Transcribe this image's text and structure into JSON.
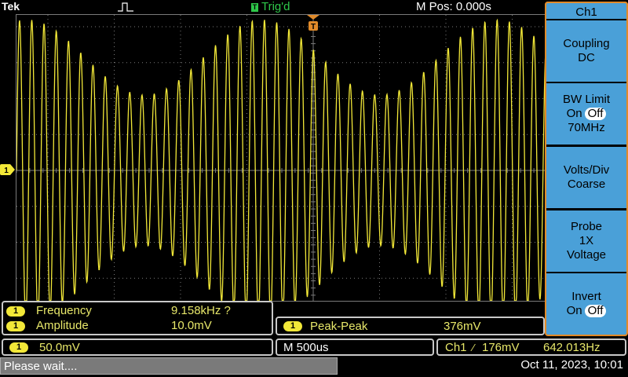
{
  "topbar": {
    "brand": "Tek",
    "trigger_status": "Trig'd",
    "trigger_status_badge": "T",
    "horizontal_position": "M Pos: 0.000s"
  },
  "display": {
    "channel_marker": "1",
    "trace_color": "#f2e838",
    "grid_color": "#7a7a7a",
    "trigger_marker_color": "#e08a2a"
  },
  "sidemenu": {
    "title": "Ch1",
    "buttons": [
      {
        "line1": "Coupling",
        "line2": "DC"
      },
      {
        "line1": "BW Limit",
        "on": "On",
        "off": "Off",
        "line3": "70MHz"
      },
      {
        "line1": "Volts/Div",
        "line2": "Coarse"
      },
      {
        "line1": "Probe",
        "line2": "1X",
        "line3": "Voltage"
      },
      {
        "line1": "Invert",
        "on": "On",
        "off": "Off"
      }
    ]
  },
  "measurements": {
    "items": [
      {
        "channel": "1",
        "label": "Frequency",
        "value": "9.158kHz ?"
      },
      {
        "channel": "1",
        "label": "Amplitude",
        "value": "10.0mV"
      }
    ],
    "peak_peak": {
      "channel": "1",
      "label": "Peak-Peak",
      "value": "376mV"
    }
  },
  "status": {
    "channel": "1",
    "volts_per_div": "50.0mV",
    "timebase": "M 500us",
    "trigger_channel": "Ch1",
    "trigger_slope": "∕",
    "trigger_level": "176mV",
    "trigger_frequency": "642.013Hz"
  },
  "bottombar": {
    "message": "Please wait....",
    "datetime": "Oct 11, 2023, 10:01"
  },
  "colors": {
    "menu_blue": "#4aa0d8",
    "menu_border": "#e08a2a",
    "channel_yellow": "#f2e838",
    "trig_green": "#2ec84a"
  }
}
